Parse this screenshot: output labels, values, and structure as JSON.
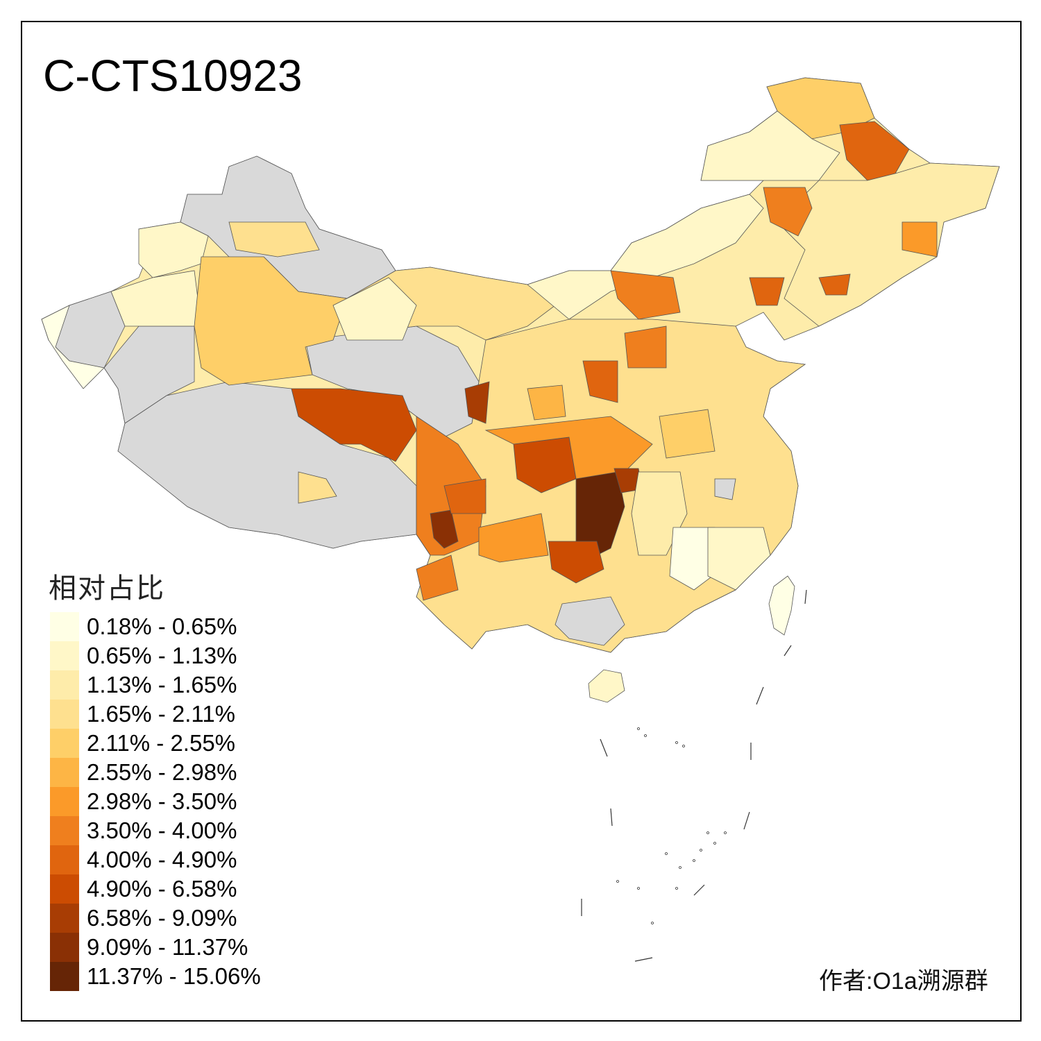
{
  "title": "C-CTS10923",
  "legend": {
    "title": "相对占比",
    "items": [
      {
        "label": "0.18% - 0.65%",
        "color": "#FFFFE5"
      },
      {
        "label": "0.65% - 1.13%",
        "color": "#FFF7C8"
      },
      {
        "label": "1.13% - 1.65%",
        "color": "#FEECAA"
      },
      {
        "label": "1.65% - 2.11%",
        "color": "#FEE08F"
      },
      {
        "label": "2.11% - 2.55%",
        "color": "#FECF68"
      },
      {
        "label": "2.55% - 2.98%",
        "color": "#FDB545"
      },
      {
        "label": "2.98% - 3.50%",
        "color": "#FB9A29"
      },
      {
        "label": "3.50% - 4.00%",
        "color": "#EF7F1E"
      },
      {
        "label": "4.00% - 4.90%",
        "color": "#E0650F"
      },
      {
        "label": "4.90% - 6.58%",
        "color": "#CC4C02"
      },
      {
        "label": "6.58% - 9.09%",
        "color": "#A83D04"
      },
      {
        "label": "9.09% - 11.37%",
        "color": "#8A3005"
      },
      {
        "label": "11.37% - 15.06%",
        "color": "#662506"
      }
    ]
  },
  "no_data_color": "#D9D9D9",
  "author": "作者:O1a溯源群"
}
